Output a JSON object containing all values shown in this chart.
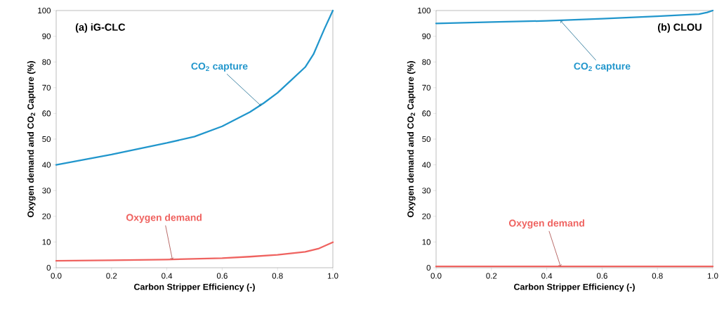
{
  "chart_data": [
    {
      "type": "line",
      "title": "(a) iG-CLC",
      "xlabel": "Carbon Stripper Efficiency (-)",
      "ylabel": "Oxygen demand and CO$_{2}$ Capture (%)",
      "xlim": [
        0,
        1
      ],
      "ylim": [
        0,
        100
      ],
      "xticks": [
        {
          "value": 0,
          "label": "0.0"
        },
        {
          "value": 0.2,
          "label": "0.2"
        },
        {
          "value": 0.4,
          "label": "0.4"
        },
        {
          "value": 0.6,
          "label": "0.6"
        },
        {
          "value": 0.8,
          "label": "0.8"
        },
        {
          "value": 1,
          "label": "1.0"
        }
      ],
      "yticks": [
        0,
        10,
        20,
        30,
        40,
        50,
        60,
        70,
        80,
        90,
        100
      ],
      "series": [
        {
          "color": "#2196cc",
          "x": [
            0,
            0.2,
            0.4,
            0.5,
            0.6,
            0.7,
            0.75,
            0.8,
            0.85,
            0.9,
            0.93,
            0.95,
            0.97,
            1.0
          ],
          "values": [
            40,
            44,
            48.5,
            51,
            55,
            60.5,
            64,
            68,
            73,
            78,
            83,
            88,
            93,
            100
          ]
        },
        {
          "color": "#ef6360",
          "x": [
            0,
            0.2,
            0.4,
            0.6,
            0.7,
            0.8,
            0.9,
            0.95,
            1.0
          ],
          "values": [
            2.7,
            2.9,
            3.2,
            3.7,
            4.3,
            5.0,
            6.2,
            7.5,
            9.9
          ]
        }
      ],
      "annotations": [
        {
          "text": "CO$_{2}$ capture",
          "x": 0.74,
          "y": 63
        },
        {
          "text": "Oxygen demand",
          "x": 0.42,
          "y": 3.2
        }
      ],
      "marker": "none",
      "line_style": "solid",
      "grid": false
    },
    {
      "type": "line",
      "title": "(b) CLOU",
      "xlabel": "Carbon Stripper Efficiency (-)",
      "ylabel": "Oxygen demand and CO$_{2}$ Capture (%)",
      "xlim": [
        0,
        1
      ],
      "ylim": [
        0,
        100
      ],
      "xticks": [
        {
          "value": 0,
          "label": "0.0"
        },
        {
          "value": 0.2,
          "label": "0.2"
        },
        {
          "value": 0.4,
          "label": "0.4"
        },
        {
          "value": 0.6,
          "label": "0.6"
        },
        {
          "value": 0.8,
          "label": "0.8"
        },
        {
          "value": 1,
          "label": "1.0"
        }
      ],
      "yticks": [
        0,
        10,
        20,
        30,
        40,
        50,
        60,
        70,
        80,
        90,
        100
      ],
      "series": [
        {
          "color": "#2196cc",
          "x": [
            0,
            0.2,
            0.4,
            0.6,
            0.8,
            0.95,
            0.98,
            1.0
          ],
          "values": [
            95,
            95.5,
            96,
            96.8,
            97.8,
            98.6,
            99.3,
            100
          ]
        },
        {
          "color": "#ef6360",
          "x": [
            0,
            1.0
          ],
          "values": [
            0.5,
            0.5
          ]
        }
      ],
      "annotations": [
        {
          "text": "CO$_{2}$ capture",
          "x": 0.45,
          "y": 96
        },
        {
          "text": "Oxygen demand",
          "x": 0.45,
          "y": 0.5
        }
      ],
      "marker": "none",
      "line_style": "solid",
      "grid": false
    }
  ]
}
